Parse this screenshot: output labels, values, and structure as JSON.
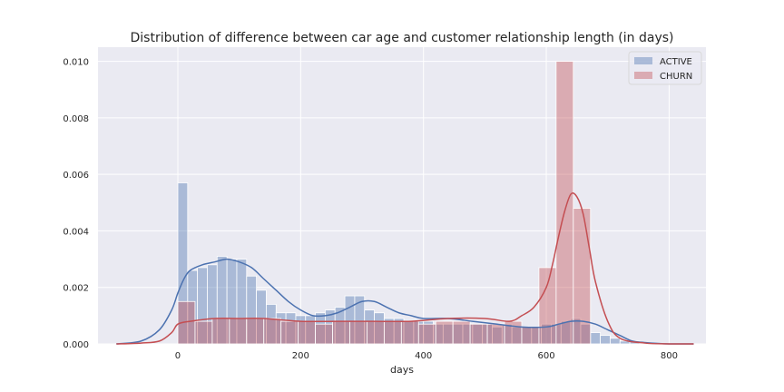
{
  "chart_data": {
    "type": "bar",
    "title": "Distribution of difference between car age and customer relationship length (in days)",
    "xlabel": "days",
    "ylabel": "",
    "xlim": [
      -130,
      860
    ],
    "ylim": [
      0,
      0.0105
    ],
    "xticks": [
      0,
      200,
      400,
      600,
      800
    ],
    "yticks": [
      0.0,
      0.002,
      0.004,
      0.006,
      0.008,
      0.01
    ],
    "ytick_labels": [
      "0.000",
      "0.002",
      "0.004",
      "0.006",
      "0.008",
      "0.010"
    ],
    "grid": true,
    "legend_position": "top-right",
    "series": [
      {
        "name": "ACTIVE",
        "color": "#4c72b0",
        "bin_edges": [
          0,
          16,
          32,
          48,
          64,
          80,
          96,
          112,
          128,
          144,
          160,
          176,
          192,
          208,
          224,
          240,
          256,
          272,
          288,
          304,
          320,
          336,
          352,
          368,
          384,
          400,
          416,
          432,
          448,
          464,
          480,
          496,
          512,
          528,
          544,
          560,
          576,
          592,
          608,
          624,
          640,
          656,
          672,
          688,
          704,
          720,
          736,
          752
        ],
        "values": [
          0.0057,
          0.0026,
          0.0027,
          0.0028,
          0.0031,
          0.003,
          0.003,
          0.0024,
          0.0019,
          0.0014,
          0.0011,
          0.0011,
          0.001,
          0.001,
          0.0011,
          0.0012,
          0.0013,
          0.0017,
          0.0017,
          0.0012,
          0.0011,
          0.0009,
          0.0009,
          0.0008,
          0.0008,
          0.0008,
          0.0007,
          0.0007,
          0.0007,
          0.0007,
          0.0007,
          0.0007,
          0.0006,
          0.0007,
          0.0006,
          0.0006,
          0.0006,
          0.0007,
          0.0007,
          0.0008,
          0.0009,
          0.0007,
          0.0004,
          0.0003,
          0.0002,
          0.0001,
          0.0001
        ],
        "kde_x": [
          -100,
          -60,
          -30,
          -10,
          0,
          10,
          20,
          40,
          60,
          80,
          100,
          120,
          140,
          160,
          180,
          200,
          220,
          240,
          260,
          280,
          300,
          320,
          340,
          360,
          380,
          400,
          440,
          480,
          520,
          560,
          600,
          620,
          640,
          660,
          680,
          700,
          720,
          740,
          760,
          800,
          840
        ],
        "kde_y": [
          0.0,
          0.0001,
          0.0005,
          0.0012,
          0.0018,
          0.0023,
          0.0026,
          0.0028,
          0.0029,
          0.003,
          0.0029,
          0.0027,
          0.0023,
          0.0019,
          0.0015,
          0.0012,
          0.001,
          0.001,
          0.0011,
          0.0013,
          0.0015,
          0.0015,
          0.0013,
          0.0011,
          0.001,
          0.0009,
          0.0009,
          0.0008,
          0.0007,
          0.0006,
          0.0006,
          0.0007,
          0.0008,
          0.0008,
          0.0007,
          0.0005,
          0.0003,
          0.0001,
          5e-05,
          0.0,
          0.0
        ]
      },
      {
        "name": "CHURN",
        "color": "#c44e52",
        "bin_edges": [
          0,
          28,
          56,
          84,
          112,
          140,
          168,
          196,
          224,
          252,
          280,
          308,
          336,
          364,
          392,
          420,
          448,
          476,
          504,
          532,
          560,
          588,
          616,
          644,
          672
        ],
        "values": [
          0.0015,
          0.0008,
          0.0009,
          0.0009,
          0.0009,
          0.0009,
          0.0008,
          0.0008,
          0.0007,
          0.0008,
          0.0008,
          0.0008,
          0.0008,
          0.0008,
          0.0007,
          0.0008,
          0.0008,
          0.0007,
          0.0007,
          0.0008,
          0.0006,
          0.0027,
          0.01,
          0.0048
        ],
        "kde_x": [
          -100,
          -60,
          -30,
          -10,
          0,
          20,
          60,
          100,
          140,
          200,
          260,
          320,
          380,
          440,
          500,
          540,
          560,
          580,
          600,
          610,
          620,
          630,
          640,
          650,
          660,
          670,
          680,
          700,
          720,
          760,
          800,
          840
        ],
        "kde_y": [
          0.0,
          3e-05,
          0.0001,
          0.0004,
          0.0007,
          0.0008,
          0.0009,
          0.0009,
          0.0009,
          0.0008,
          0.0008,
          0.0008,
          0.0008,
          0.0009,
          0.0009,
          0.0008,
          0.001,
          0.0013,
          0.002,
          0.0028,
          0.0038,
          0.0047,
          0.0053,
          0.0052,
          0.0046,
          0.0034,
          0.0022,
          0.0008,
          0.0002,
          3e-05,
          0.0,
          0.0
        ]
      }
    ]
  }
}
